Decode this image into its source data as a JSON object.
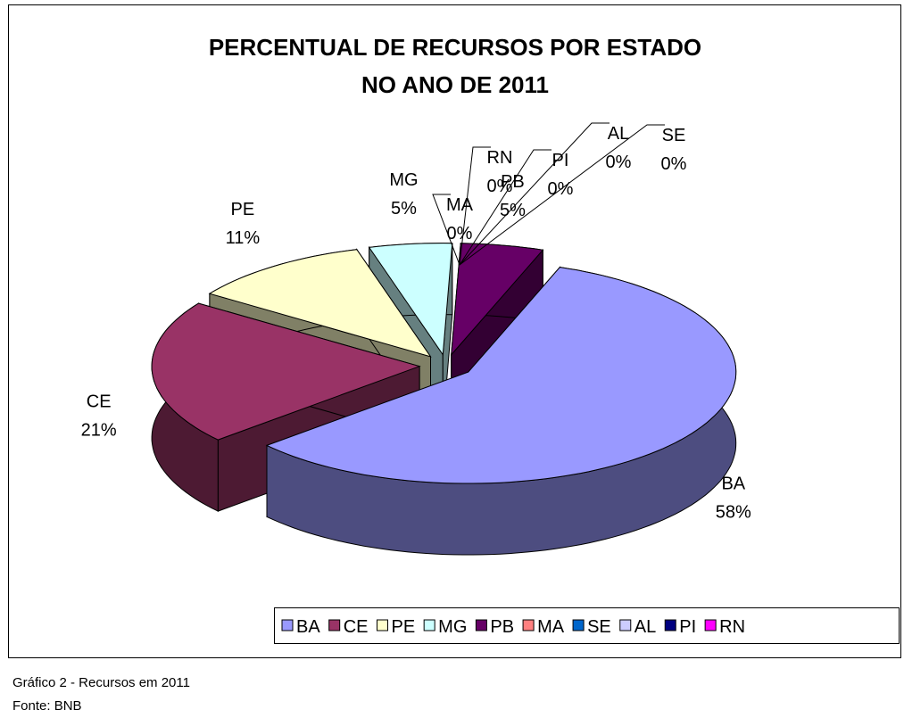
{
  "chart_data": {
    "type": "pie3d",
    "title": [
      "PERCENTUAL DE RECURSOS POR ESTADO",
      "NO ANO DE 2011"
    ],
    "categories": [
      "BA",
      "CE",
      "PE",
      "MG",
      "PB",
      "MA",
      "SE",
      "AL",
      "PI",
      "RN"
    ],
    "values": [
      58,
      21,
      11,
      5,
      5,
      0,
      0,
      0,
      0,
      0
    ],
    "value_labels": [
      "58%",
      "21%",
      "11%",
      "5%",
      "5%",
      "0%",
      "0%",
      "0%",
      "0%",
      "0%"
    ],
    "colors": [
      "#9999ff",
      "#993366",
      "#ffffcc",
      "#ccffff",
      "#660066",
      "#ff8080",
      "#0066cc",
      "#ccccff",
      "#000080",
      "#ff00ff"
    ],
    "legend": "bottom-right"
  },
  "caption": [
    "Gráfico 2 - Recursos em 2011",
    "Fonte: BNB"
  ]
}
